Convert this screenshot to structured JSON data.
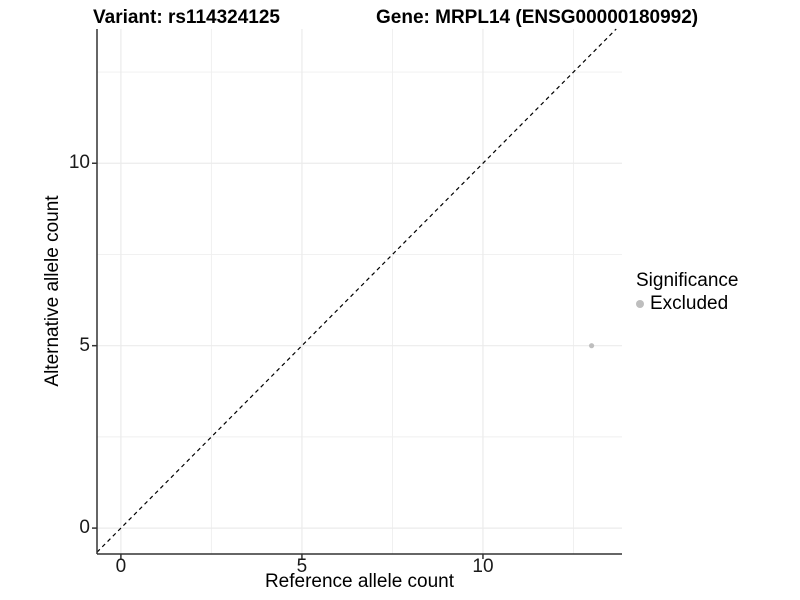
{
  "chart_data": {
    "type": "scatter",
    "title_left": "Variant: rs114324125",
    "title_right": "Gene: MRPL14 (ENSG00000180992)",
    "xlabel": "Reference allele count",
    "ylabel": "Alternative allele count",
    "xlim": [
      -0.66,
      13.84
    ],
    "ylim": [
      -0.71,
      13.68
    ],
    "x_major_ticks": [
      0,
      5,
      10
    ],
    "y_major_ticks": [
      0,
      5,
      10
    ],
    "x_minor_gridlines": [
      2.5,
      7.5,
      12.5
    ],
    "y_minor_gridlines": [
      2.5,
      7.5,
      12.5
    ],
    "grid": true,
    "series": [
      {
        "name": "Excluded",
        "color": "#bebebe",
        "points": [
          {
            "x": 13,
            "y": 5
          }
        ]
      }
    ],
    "reference_line": {
      "slope": 1,
      "intercept": 0,
      "style": "dashed",
      "color": "#000000"
    },
    "legend_position": "right",
    "colors": {
      "grid_major": "#ebebeb",
      "grid_minor": "#efefef",
      "axis_line": "#333333",
      "tick_label": "#1a1a1a",
      "point": "#bebebe"
    }
  },
  "legend": {
    "title": "Significance",
    "items": [
      {
        "label": "Excluded",
        "color": "#bebebe"
      }
    ]
  }
}
